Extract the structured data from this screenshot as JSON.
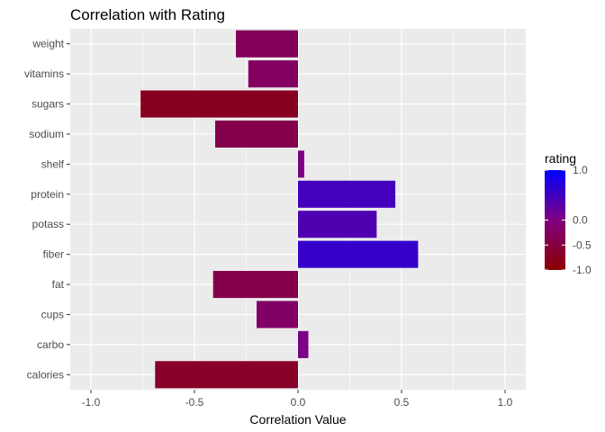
{
  "chart_data": {
    "type": "bar",
    "orientation": "horizontal",
    "title": "Correlation with Rating",
    "xlabel": "Correlation Value",
    "ylabel": "",
    "xlim": [
      -1.0,
      1.0
    ],
    "xticks": [
      -1.0,
      -0.5,
      0.0,
      0.5,
      1.0
    ],
    "xtick_labels": [
      "-1.0",
      "-0.5",
      "0.0",
      "0.5",
      "1.0"
    ],
    "grid": true,
    "categories": [
      "weight",
      "vitamins",
      "sugars",
      "sodium",
      "shelf",
      "protein",
      "potass",
      "fiber",
      "fat",
      "cups",
      "carbo",
      "calories"
    ],
    "values": [
      -0.3,
      -0.24,
      -0.76,
      -0.4,
      0.03,
      0.47,
      0.38,
      0.58,
      -0.41,
      -0.2,
      0.05,
      -0.69
    ],
    "legend": {
      "title": "rating",
      "position": "right",
      "ticks": [
        1.0,
        0.0,
        -0.5,
        -1.0
      ],
      "tick_labels": [
        "1.0",
        "0.0",
        "-0.5",
        "-1.0"
      ],
      "low_color": "#8b0000",
      "mid_color": "#800080",
      "high_color": "#0000ff"
    },
    "colors": {
      "panel_background": "#ebebeb",
      "grid": "#ffffff"
    }
  }
}
